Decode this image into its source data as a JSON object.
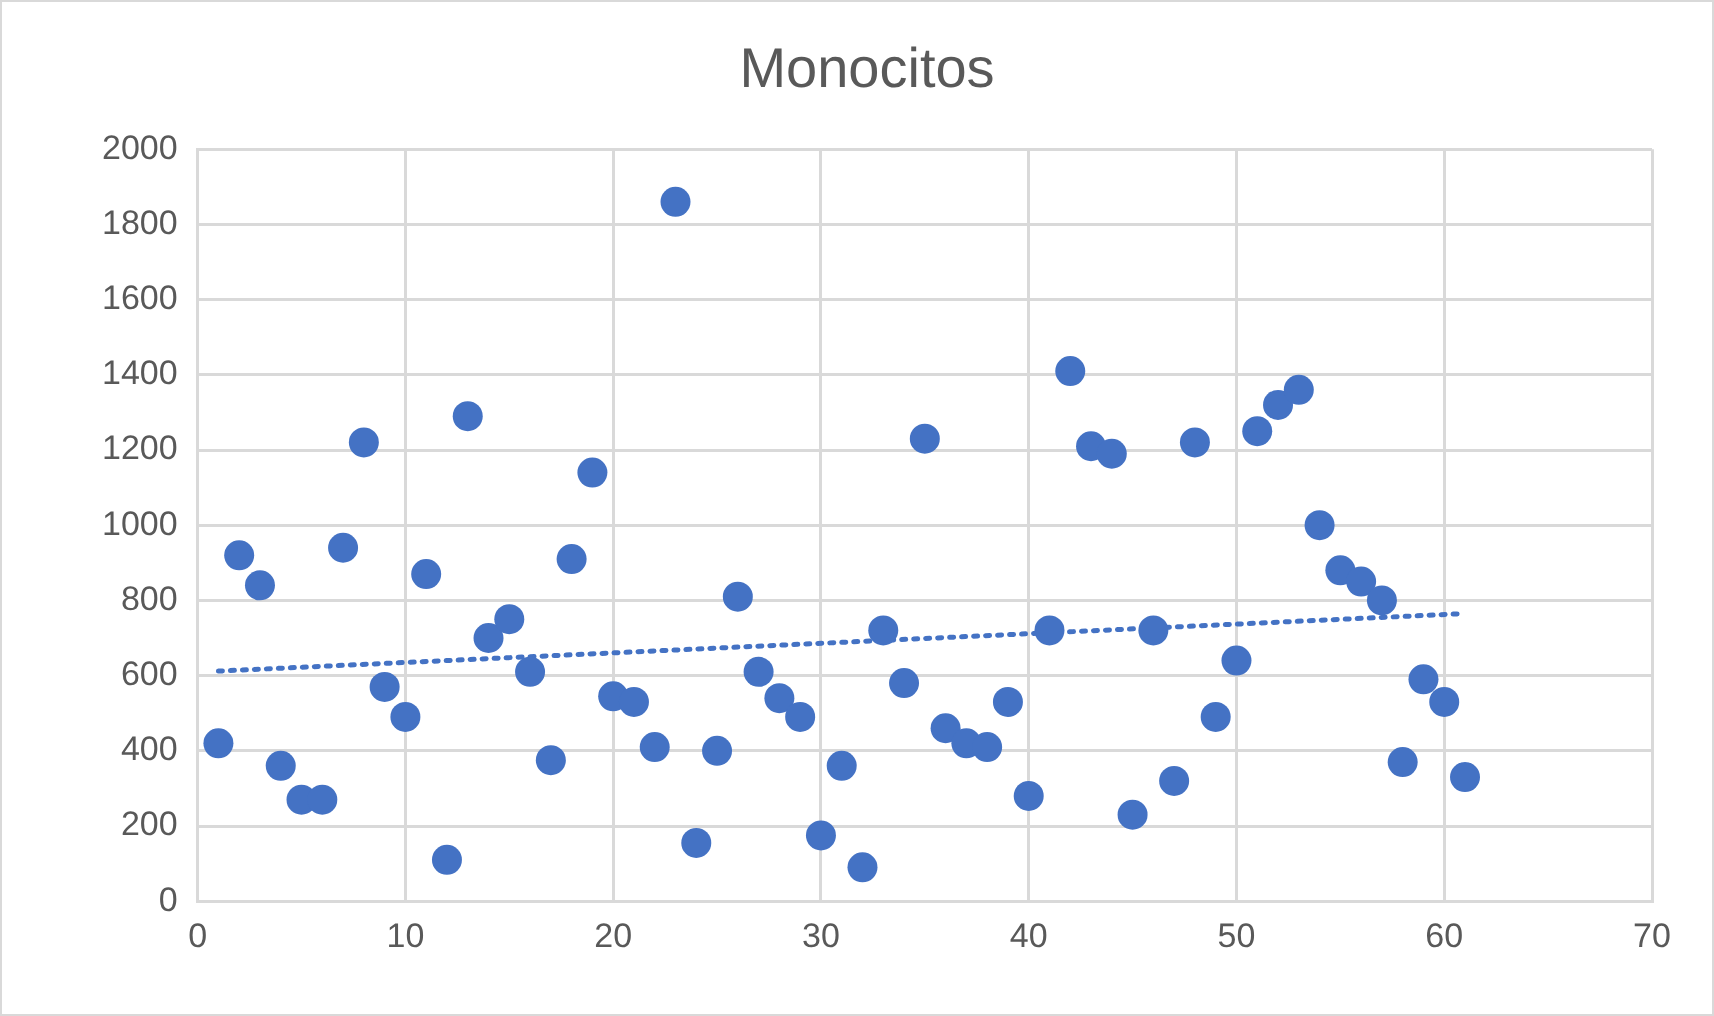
{
  "chart_data": {
    "type": "scatter",
    "title": "Monocitos",
    "xlim": [
      0,
      70
    ],
    "xticks": [
      0,
      10,
      20,
      30,
      40,
      50,
      60,
      70
    ],
    "ylim": [
      0,
      2000
    ],
    "yticks": [
      0,
      200,
      400,
      600,
      800,
      1000,
      1200,
      1400,
      1600,
      1800,
      2000
    ],
    "grid": true,
    "legend": false,
    "marker": "circle",
    "series": [
      {
        "type": "scatter",
        "color": "#4472c4",
        "x": [
          1,
          2,
          3,
          4,
          5,
          6,
          7,
          8,
          9,
          10,
          11,
          12,
          13,
          14,
          15,
          16,
          17,
          18,
          19,
          20,
          21,
          22,
          23,
          24,
          25,
          26,
          27,
          28,
          29,
          30,
          31,
          32,
          33,
          34,
          35,
          36,
          37,
          38,
          39,
          40,
          41,
          42,
          43,
          44,
          45,
          46,
          47,
          48,
          49,
          50,
          51,
          52,
          53,
          54,
          55,
          56,
          57,
          58,
          59,
          60,
          61
        ],
        "values": [
          420,
          920,
          840,
          360,
          270,
          270,
          940,
          1220,
          570,
          490,
          870,
          110,
          1290,
          700,
          750,
          610,
          375,
          910,
          1140,
          545,
          530,
          410,
          1860,
          155,
          400,
          810,
          610,
          540,
          490,
          175,
          360,
          90,
          720,
          580,
          1230,
          460,
          420,
          410,
          530,
          280,
          720,
          1410,
          1210,
          1190,
          230,
          720,
          320,
          1220,
          490,
          640,
          1250,
          1320,
          1360,
          1000,
          880,
          850,
          800,
          370,
          590,
          530,
          330
        ]
      },
      {
        "type": "line",
        "color": "#4472c4",
        "line_style": "dotted",
        "marker": "none",
        "x": [
          1,
          61
        ],
        "values": [
          612,
          765
        ]
      }
    ]
  }
}
